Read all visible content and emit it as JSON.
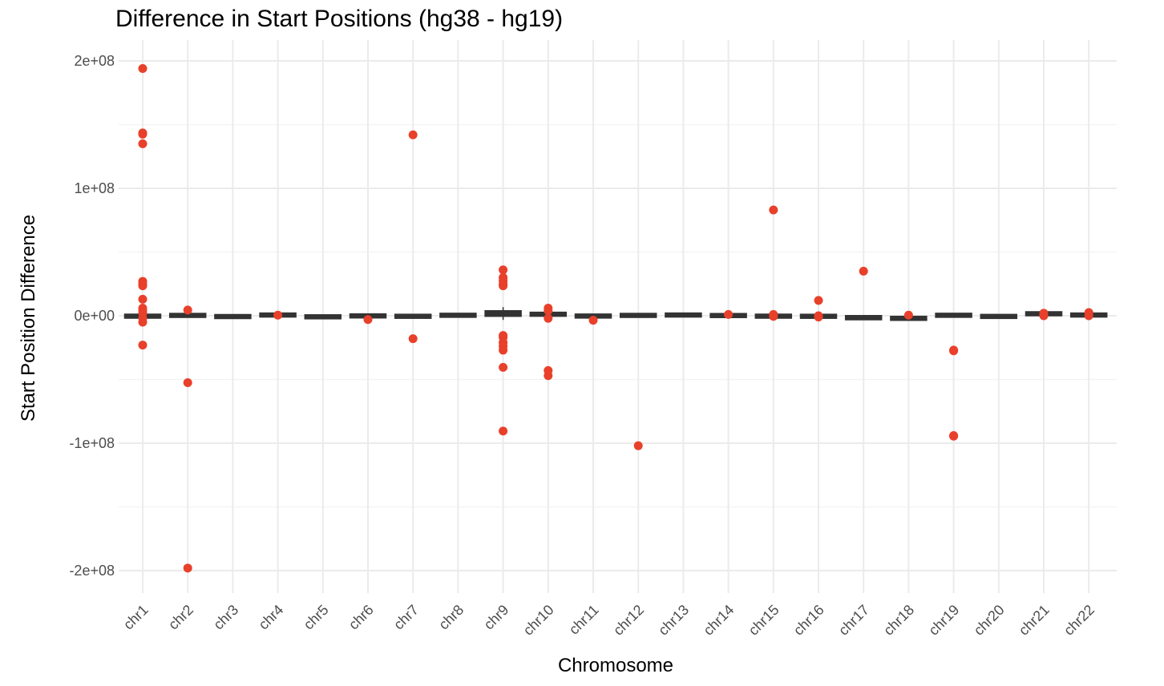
{
  "chart_data": {
    "type": "box",
    "title": "Difference in Start Positions (hg38 - hg19)",
    "xlabel": "Chromosome",
    "ylabel": "Start Position Difference",
    "categories": [
      "chr1",
      "chr2",
      "chr3",
      "chr4",
      "chr5",
      "chr6",
      "chr7",
      "chr8",
      "chr9",
      "chr10",
      "chr11",
      "chr12",
      "chr13",
      "chr14",
      "chr15",
      "chr16",
      "chr17",
      "chr18",
      "chr19",
      "chr20",
      "chr21",
      "chr22"
    ],
    "ylim": [
      -215000000,
      210000000
    ],
    "y_ticks": [
      -200000000,
      -100000000,
      0,
      100000000,
      200000000
    ],
    "y_tick_labels": [
      "-2e+08",
      "-1e+08",
      "0e+00",
      "1e+08",
      "2e+08"
    ],
    "grid": true,
    "point_color": "#e8402a",
    "box_color": "#333333",
    "boxes": [
      {
        "chr": "chr1",
        "median": 0,
        "q1": -200000,
        "q3": 300000
      },
      {
        "chr": "chr2",
        "median": 500000,
        "q1": 300000,
        "q3": 900000
      },
      {
        "chr": "chr3",
        "median": -200000,
        "q1": -400000,
        "q3": 0
      },
      {
        "chr": "chr4",
        "median": 800000,
        "q1": 500000,
        "q3": 1200000
      },
      {
        "chr": "chr5",
        "median": -500000,
        "q1": -900000,
        "q3": -200000
      },
      {
        "chr": "chr6",
        "median": 200000,
        "q1": 0,
        "q3": 500000
      },
      {
        "chr": "chr7",
        "median": -100000,
        "q1": -400000,
        "q3": 200000
      },
      {
        "chr": "chr8",
        "median": 700000,
        "q1": 400000,
        "q3": 1000000
      },
      {
        "chr": "chr9",
        "median": 1500000,
        "q1": 500000,
        "q3": 3000000
      },
      {
        "chr": "chr10",
        "median": 1300000,
        "q1": 800000,
        "q3": 1800000
      },
      {
        "chr": "chr11",
        "median": 100000,
        "q1": -200000,
        "q3": 400000
      },
      {
        "chr": "chr12",
        "median": 600000,
        "q1": 300000,
        "q3": 900000
      },
      {
        "chr": "chr13",
        "median": 900000,
        "q1": 600000,
        "q3": 1200000
      },
      {
        "chr": "chr14",
        "median": 500000,
        "q1": 200000,
        "q3": 800000
      },
      {
        "chr": "chr15",
        "median": 0,
        "q1": -300000,
        "q3": 300000
      },
      {
        "chr": "chr16",
        "median": -100000,
        "q1": -400000,
        "q3": 200000
      },
      {
        "chr": "chr17",
        "median": -1500000,
        "q1": -2200000,
        "q3": -800000
      },
      {
        "chr": "chr18",
        "median": -2000000,
        "q1": -2600000,
        "q3": -1400000
      },
      {
        "chr": "chr19",
        "median": 600000,
        "q1": 200000,
        "q3": 1000000
      },
      {
        "chr": "chr20",
        "median": -300000,
        "q1": -700000,
        "q3": 100000
      },
      {
        "chr": "chr21",
        "median": 1600000,
        "q1": 1000000,
        "q3": 2200000
      },
      {
        "chr": "chr22",
        "median": 800000,
        "q1": 400000,
        "q3": 1200000
      }
    ],
    "points": [
      {
        "chr": "chr1",
        "y": 194000000
      },
      {
        "chr": "chr1",
        "y": 143500000
      },
      {
        "chr": "chr1",
        "y": 142500000
      },
      {
        "chr": "chr1",
        "y": 135000000
      },
      {
        "chr": "chr1",
        "y": 27000000
      },
      {
        "chr": "chr1",
        "y": 25000000
      },
      {
        "chr": "chr1",
        "y": 23500000
      },
      {
        "chr": "chr1",
        "y": 13000000
      },
      {
        "chr": "chr1",
        "y": 6000000
      },
      {
        "chr": "chr1",
        "y": 4000000
      },
      {
        "chr": "chr1",
        "y": 2000000
      },
      {
        "chr": "chr1",
        "y": -2000000
      },
      {
        "chr": "chr1",
        "y": -5000000
      },
      {
        "chr": "chr1",
        "y": -23000000
      },
      {
        "chr": "chr2",
        "y": 4500000
      },
      {
        "chr": "chr2",
        "y": -52500000
      },
      {
        "chr": "chr2",
        "y": -198000000
      },
      {
        "chr": "chr4",
        "y": 500000
      },
      {
        "chr": "chr6",
        "y": -3000000
      },
      {
        "chr": "chr7",
        "y": 142000000
      },
      {
        "chr": "chr7",
        "y": -18000000
      },
      {
        "chr": "chr9",
        "y": 36000000
      },
      {
        "chr": "chr9",
        "y": 30000000
      },
      {
        "chr": "chr9",
        "y": 27500000
      },
      {
        "chr": "chr9",
        "y": 25000000
      },
      {
        "chr": "chr9",
        "y": 23500000
      },
      {
        "chr": "chr9",
        "y": -15500000
      },
      {
        "chr": "chr9",
        "y": -17000000
      },
      {
        "chr": "chr9",
        "y": -21000000
      },
      {
        "chr": "chr9",
        "y": -24000000
      },
      {
        "chr": "chr9",
        "y": -27000000
      },
      {
        "chr": "chr9",
        "y": -40500000
      },
      {
        "chr": "chr9",
        "y": -90500000
      },
      {
        "chr": "chr10",
        "y": 6000000
      },
      {
        "chr": "chr10",
        "y": 4000000
      },
      {
        "chr": "chr10",
        "y": -2000000
      },
      {
        "chr": "chr10",
        "y": -43000000
      },
      {
        "chr": "chr10",
        "y": -47000000
      },
      {
        "chr": "chr11",
        "y": -3500000
      },
      {
        "chr": "chr12",
        "y": -102000000
      },
      {
        "chr": "chr14",
        "y": 1000000
      },
      {
        "chr": "chr15",
        "y": 83000000
      },
      {
        "chr": "chr15",
        "y": 1000000
      },
      {
        "chr": "chr15",
        "y": -500000
      },
      {
        "chr": "chr16",
        "y": 12000000
      },
      {
        "chr": "chr16",
        "y": 0
      },
      {
        "chr": "chr16",
        "y": -1000000
      },
      {
        "chr": "chr17",
        "y": 35000000
      },
      {
        "chr": "chr18",
        "y": 500000
      },
      {
        "chr": "chr19",
        "y": -27000000
      },
      {
        "chr": "chr19",
        "y": -27500000
      },
      {
        "chr": "chr19",
        "y": -94000000
      },
      {
        "chr": "chr19",
        "y": -94500000
      },
      {
        "chr": "chr21",
        "y": 2000000
      },
      {
        "chr": "chr21",
        "y": 0
      },
      {
        "chr": "chr22",
        "y": 2500000
      },
      {
        "chr": "chr22",
        "y": 0
      }
    ]
  }
}
